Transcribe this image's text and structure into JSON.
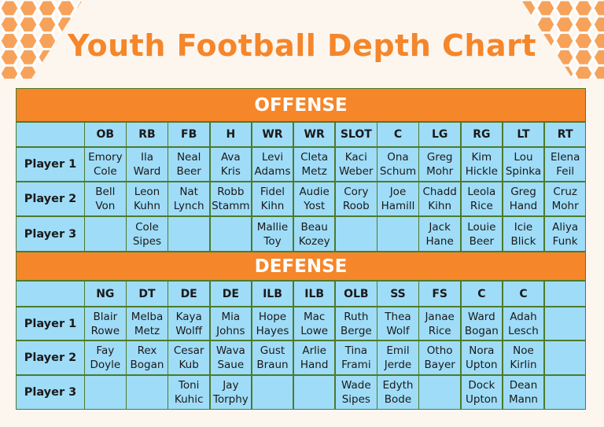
{
  "title": "Youth Football Depth Chart",
  "offense": {
    "heading": "OFFENSE",
    "positions": [
      "OB",
      "RB",
      "FB",
      "H",
      "WR",
      "WR",
      "SLOT",
      "C",
      "LG",
      "RG",
      "LT",
      "RT"
    ],
    "rows": [
      {
        "label": "Player 1",
        "cells": [
          [
            "Emory",
            "Cole"
          ],
          [
            "Ila",
            "Ward"
          ],
          [
            "Neal",
            "Beer"
          ],
          [
            "Ava",
            "Kris"
          ],
          [
            "Levi",
            "Adams"
          ],
          [
            "Cleta",
            "Metz"
          ],
          [
            "Kaci",
            "Weber"
          ],
          [
            "Ona",
            "Schum"
          ],
          [
            "Greg",
            "Mohr"
          ],
          [
            "Kim",
            "Hickle"
          ],
          [
            "Lou",
            "Spinka"
          ],
          [
            "Elena",
            "Feil"
          ]
        ]
      },
      {
        "label": "Player 2",
        "cells": [
          [
            "Bell",
            "Von"
          ],
          [
            "Leon",
            "Kuhn"
          ],
          [
            "Nat",
            "Lynch"
          ],
          [
            "Robb",
            "Stamm"
          ],
          [
            "Fidel",
            "Kihn"
          ],
          [
            "Audie",
            "Yost"
          ],
          [
            "Cory",
            "Roob"
          ],
          [
            "Joe",
            "Hamill"
          ],
          [
            "Chadd",
            "Kihn"
          ],
          [
            "Leola",
            "Rice"
          ],
          [
            "Greg",
            "Hand"
          ],
          [
            "Cruz",
            "Mohr"
          ]
        ]
      },
      {
        "label": "Player 3",
        "cells": [
          null,
          [
            "Cole",
            "Sipes"
          ],
          null,
          null,
          [
            "Mallie",
            "Toy"
          ],
          [
            "Beau",
            "Kozey"
          ],
          null,
          null,
          [
            "Jack",
            "Hane"
          ],
          [
            "Louie",
            "Beer"
          ],
          [
            "Icie",
            "Blick"
          ],
          [
            "Aliya",
            "Funk"
          ]
        ]
      }
    ]
  },
  "defense": {
    "heading": "DEFENSE",
    "positions": [
      "NG",
      "DT",
      "DE",
      "DE",
      "ILB",
      "ILB",
      "OLB",
      "SS",
      "FS",
      "C",
      "C",
      null
    ],
    "rows": [
      {
        "label": "Player 1",
        "cells": [
          [
            "Blair",
            "Rowe"
          ],
          [
            "Melba",
            "Metz"
          ],
          [
            "Kaya",
            "Wolff"
          ],
          [
            "Mia",
            "Johns"
          ],
          [
            "Hope",
            "Hayes"
          ],
          [
            "Mac",
            "Lowe"
          ],
          [
            "Ruth",
            "Berge"
          ],
          [
            "Thea",
            "Wolf"
          ],
          [
            "Janae",
            "Rice"
          ],
          [
            "Ward",
            "Bogan"
          ],
          [
            "Adah",
            "Lesch"
          ],
          null
        ]
      },
      {
        "label": "Player 2",
        "cells": [
          [
            "Fay",
            "Doyle"
          ],
          [
            "Rex",
            "Bogan"
          ],
          [
            "Cesar",
            "Kub"
          ],
          [
            "Wava",
            "Saue"
          ],
          [
            "Gust",
            "Braun"
          ],
          [
            "Arlie",
            "Hand"
          ],
          [
            "Tina",
            "Frami"
          ],
          [
            "Emil",
            "Jerde"
          ],
          [
            "Otho",
            "Bayer"
          ],
          [
            "Nora",
            "Upton"
          ],
          [
            "Noe",
            "Kirlin"
          ],
          null
        ]
      },
      {
        "label": "Player 3",
        "cells": [
          null,
          null,
          [
            "Toni",
            "Kuhic"
          ],
          [
            "Jay",
            "Torphy"
          ],
          null,
          null,
          [
            "Wade",
            "Sipes"
          ],
          [
            "Edyth",
            "Bode"
          ],
          null,
          [
            "Dock",
            "Upton"
          ],
          [
            "Dean",
            "Mann"
          ],
          null
        ]
      }
    ]
  }
}
